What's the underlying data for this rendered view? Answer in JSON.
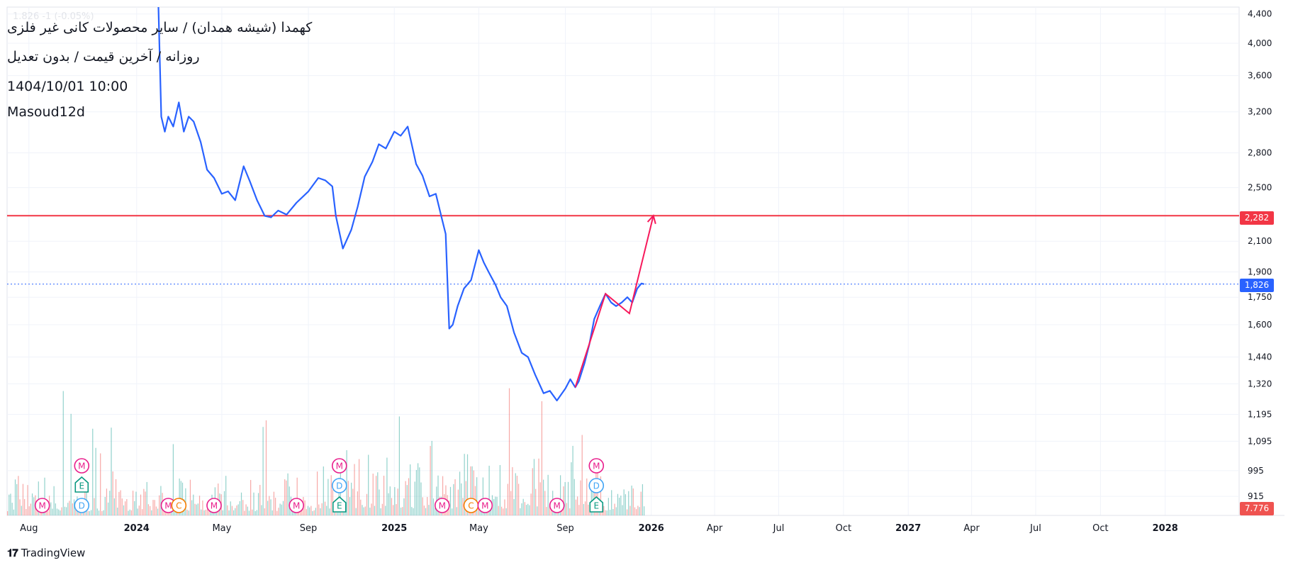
{
  "overlay": {
    "title": "کهمدا (شیشه همدان) / سایر محصولات کانی غیر فلزی",
    "subtitle": "روزانه / آخرین قیمت / بدون تعدیل",
    "datetime": "1404/10/01 10:00",
    "author": "Masoud12d",
    "ghost_text": "1.826 -1 (-0.05%)"
  },
  "brand": {
    "name": "TradingView",
    "logo": "tv-logo-icon"
  },
  "colors": {
    "price_line": "#2962ff",
    "horizontal_level": "#f23645",
    "projection": "#f7195b",
    "last_price_tag": "#2962ff",
    "volume_up": "#26a69a",
    "volume_down": "#ef5350",
    "grid": "#f0f3fa",
    "marker_m": "#e91e8c",
    "marker_d": "#42a5f5",
    "marker_e": "#089981",
    "marker_c": "#f57c00"
  },
  "chart_data": {
    "type": "line",
    "y_scale": "log",
    "ylim": [
      860,
      4500
    ],
    "y_ticks": [
      4400,
      4000,
      3600,
      3200,
      2800,
      2500,
      2100,
      1900,
      1750,
      1600,
      1440,
      1320,
      1195,
      1095,
      995,
      915
    ],
    "x_ticks": [
      "Aug",
      "2024",
      "May",
      "Sep",
      "2025",
      "May",
      "Sep",
      "2026",
      "Apr",
      "Jul",
      "Oct",
      "2027",
      "Apr",
      "Jul",
      "Oct",
      "2028"
    ],
    "x_tick_bold": [
      false,
      true,
      false,
      false,
      true,
      false,
      false,
      true,
      false,
      false,
      false,
      true,
      false,
      false,
      false,
      true
    ],
    "x_tick_dates": [
      "2023-08-01",
      "2024-01-01",
      "2024-05-01",
      "2024-09-01",
      "2025-01-01",
      "2025-05-01",
      "2025-09-01",
      "2026-01-01",
      "2026-04-01",
      "2026-07-01",
      "2026-10-01",
      "2027-01-01",
      "2027-04-01",
      "2027-07-01",
      "2027-10-01",
      "2028-01-01"
    ],
    "xlim": [
      "2023-07-01",
      "2028-04-15"
    ],
    "series": [
      {
        "points": [
          [
            "2024-02-01",
            4600
          ],
          [
            "2024-02-05",
            3150
          ],
          [
            "2024-02-10",
            3000
          ],
          [
            "2024-02-15",
            3150
          ],
          [
            "2024-02-22",
            3050
          ],
          [
            "2024-03-01",
            3300
          ],
          [
            "2024-03-08",
            3000
          ],
          [
            "2024-03-15",
            3150
          ],
          [
            "2024-03-22",
            3100
          ],
          [
            "2024-04-01",
            2900
          ],
          [
            "2024-04-10",
            2650
          ],
          [
            "2024-04-20",
            2580
          ],
          [
            "2024-05-01",
            2450
          ],
          [
            "2024-05-10",
            2470
          ],
          [
            "2024-05-20",
            2400
          ],
          [
            "2024-06-01",
            2680
          ],
          [
            "2024-06-10",
            2550
          ],
          [
            "2024-06-20",
            2400
          ],
          [
            "2024-07-01",
            2280
          ],
          [
            "2024-07-10",
            2270
          ],
          [
            "2024-07-20",
            2320
          ],
          [
            "2024-08-01",
            2290
          ],
          [
            "2024-08-15",
            2380
          ],
          [
            "2024-09-01",
            2470
          ],
          [
            "2024-09-15",
            2580
          ],
          [
            "2024-09-25",
            2560
          ],
          [
            "2024-10-05",
            2510
          ],
          [
            "2024-10-10",
            2280
          ],
          [
            "2024-10-20",
            2050
          ],
          [
            "2024-11-01",
            2180
          ],
          [
            "2024-11-10",
            2350
          ],
          [
            "2024-11-20",
            2590
          ],
          [
            "2024-12-01",
            2720
          ],
          [
            "2024-12-10",
            2880
          ],
          [
            "2024-12-20",
            2840
          ],
          [
            "2025-01-01",
            3000
          ],
          [
            "2025-01-10",
            2960
          ],
          [
            "2025-01-20",
            3050
          ],
          [
            "2025-01-25",
            2900
          ],
          [
            "2025-02-01",
            2700
          ],
          [
            "2025-02-10",
            2600
          ],
          [
            "2025-02-20",
            2430
          ],
          [
            "2025-03-01",
            2450
          ],
          [
            "2025-03-10",
            2250
          ],
          [
            "2025-03-15",
            2150
          ],
          [
            "2025-03-20",
            1580
          ],
          [
            "2025-03-25",
            1600
          ],
          [
            "2025-04-01",
            1700
          ],
          [
            "2025-04-10",
            1800
          ],
          [
            "2025-04-20",
            1850
          ],
          [
            "2025-05-01",
            2040
          ],
          [
            "2025-05-08",
            1960
          ],
          [
            "2025-05-15",
            1900
          ],
          [
            "2025-05-25",
            1820
          ],
          [
            "2025-06-01",
            1750
          ],
          [
            "2025-06-10",
            1700
          ],
          [
            "2025-06-20",
            1560
          ],
          [
            "2025-07-01",
            1460
          ],
          [
            "2025-07-10",
            1440
          ],
          [
            "2025-07-20",
            1360
          ],
          [
            "2025-08-01",
            1280
          ],
          [
            "2025-08-10",
            1290
          ],
          [
            "2025-08-20",
            1250
          ],
          [
            "2025-09-01",
            1300
          ],
          [
            "2025-09-08",
            1340
          ],
          [
            "2025-09-15",
            1305
          ],
          [
            "2025-09-20",
            1330
          ],
          [
            "2025-09-28",
            1410
          ],
          [
            "2025-10-05",
            1500
          ],
          [
            "2025-10-12",
            1630
          ],
          [
            "2025-10-20",
            1700
          ],
          [
            "2025-10-28",
            1770
          ],
          [
            "2025-11-05",
            1720
          ],
          [
            "2025-11-12",
            1700
          ],
          [
            "2025-11-20",
            1720
          ],
          [
            "2025-11-28",
            1750
          ],
          [
            "2025-12-05",
            1720
          ],
          [
            "2025-12-12",
            1800
          ],
          [
            "2025-12-18",
            1830
          ],
          [
            "2025-12-22",
            1826
          ]
        ]
      }
    ],
    "horizontal_level": {
      "value": 2282,
      "label": "2,282"
    },
    "last_price": {
      "value": 1826,
      "label": "1,826"
    },
    "projection": {
      "points": [
        [
          "2025-09-15",
          1305
        ],
        [
          "2025-10-28",
          1770
        ],
        [
          "2025-12-01",
          1660
        ],
        [
          "2026-01-04",
          2282
        ]
      ]
    },
    "volume": {
      "label": "7.776 M",
      "note": "volume histogram bars at chart bottom; heights relative",
      "pattern_start": "2023-07-01",
      "pattern_end": "2025-12-22"
    },
    "event_markers": [
      {
        "date": "2023-08-20",
        "row": 0,
        "letter": "M",
        "kind": "m"
      },
      {
        "date": "2023-10-15",
        "row": 0,
        "letter": "D",
        "kind": "d"
      },
      {
        "date": "2023-10-15",
        "row": 1,
        "letter": "E",
        "kind": "e"
      },
      {
        "date": "2023-10-15",
        "row": 2,
        "letter": "M",
        "kind": "m"
      },
      {
        "date": "2024-02-15",
        "row": 0,
        "letter": "M",
        "kind": "m"
      },
      {
        "date": "2024-03-01",
        "row": 0,
        "letter": "C",
        "kind": "c"
      },
      {
        "date": "2024-04-20",
        "row": 0,
        "letter": "M",
        "kind": "m"
      },
      {
        "date": "2024-08-15",
        "row": 0,
        "letter": "M",
        "kind": "m"
      },
      {
        "date": "2024-10-15",
        "row": 0,
        "letter": "E",
        "kind": "e"
      },
      {
        "date": "2024-10-15",
        "row": 1,
        "letter": "D",
        "kind": "d"
      },
      {
        "date": "2024-10-15",
        "row": 2,
        "letter": "M",
        "kind": "m"
      },
      {
        "date": "2025-03-10",
        "row": 0,
        "letter": "M",
        "kind": "m"
      },
      {
        "date": "2025-04-20",
        "row": 0,
        "letter": "C",
        "kind": "c"
      },
      {
        "date": "2025-05-10",
        "row": 0,
        "letter": "M",
        "kind": "m"
      },
      {
        "date": "2025-08-20",
        "row": 0,
        "letter": "M",
        "kind": "m"
      },
      {
        "date": "2025-10-15",
        "row": 0,
        "letter": "E",
        "kind": "e"
      },
      {
        "date": "2025-10-15",
        "row": 1,
        "letter": "D",
        "kind": "d"
      },
      {
        "date": "2025-10-15",
        "row": 2,
        "letter": "M",
        "kind": "m"
      }
    ]
  }
}
